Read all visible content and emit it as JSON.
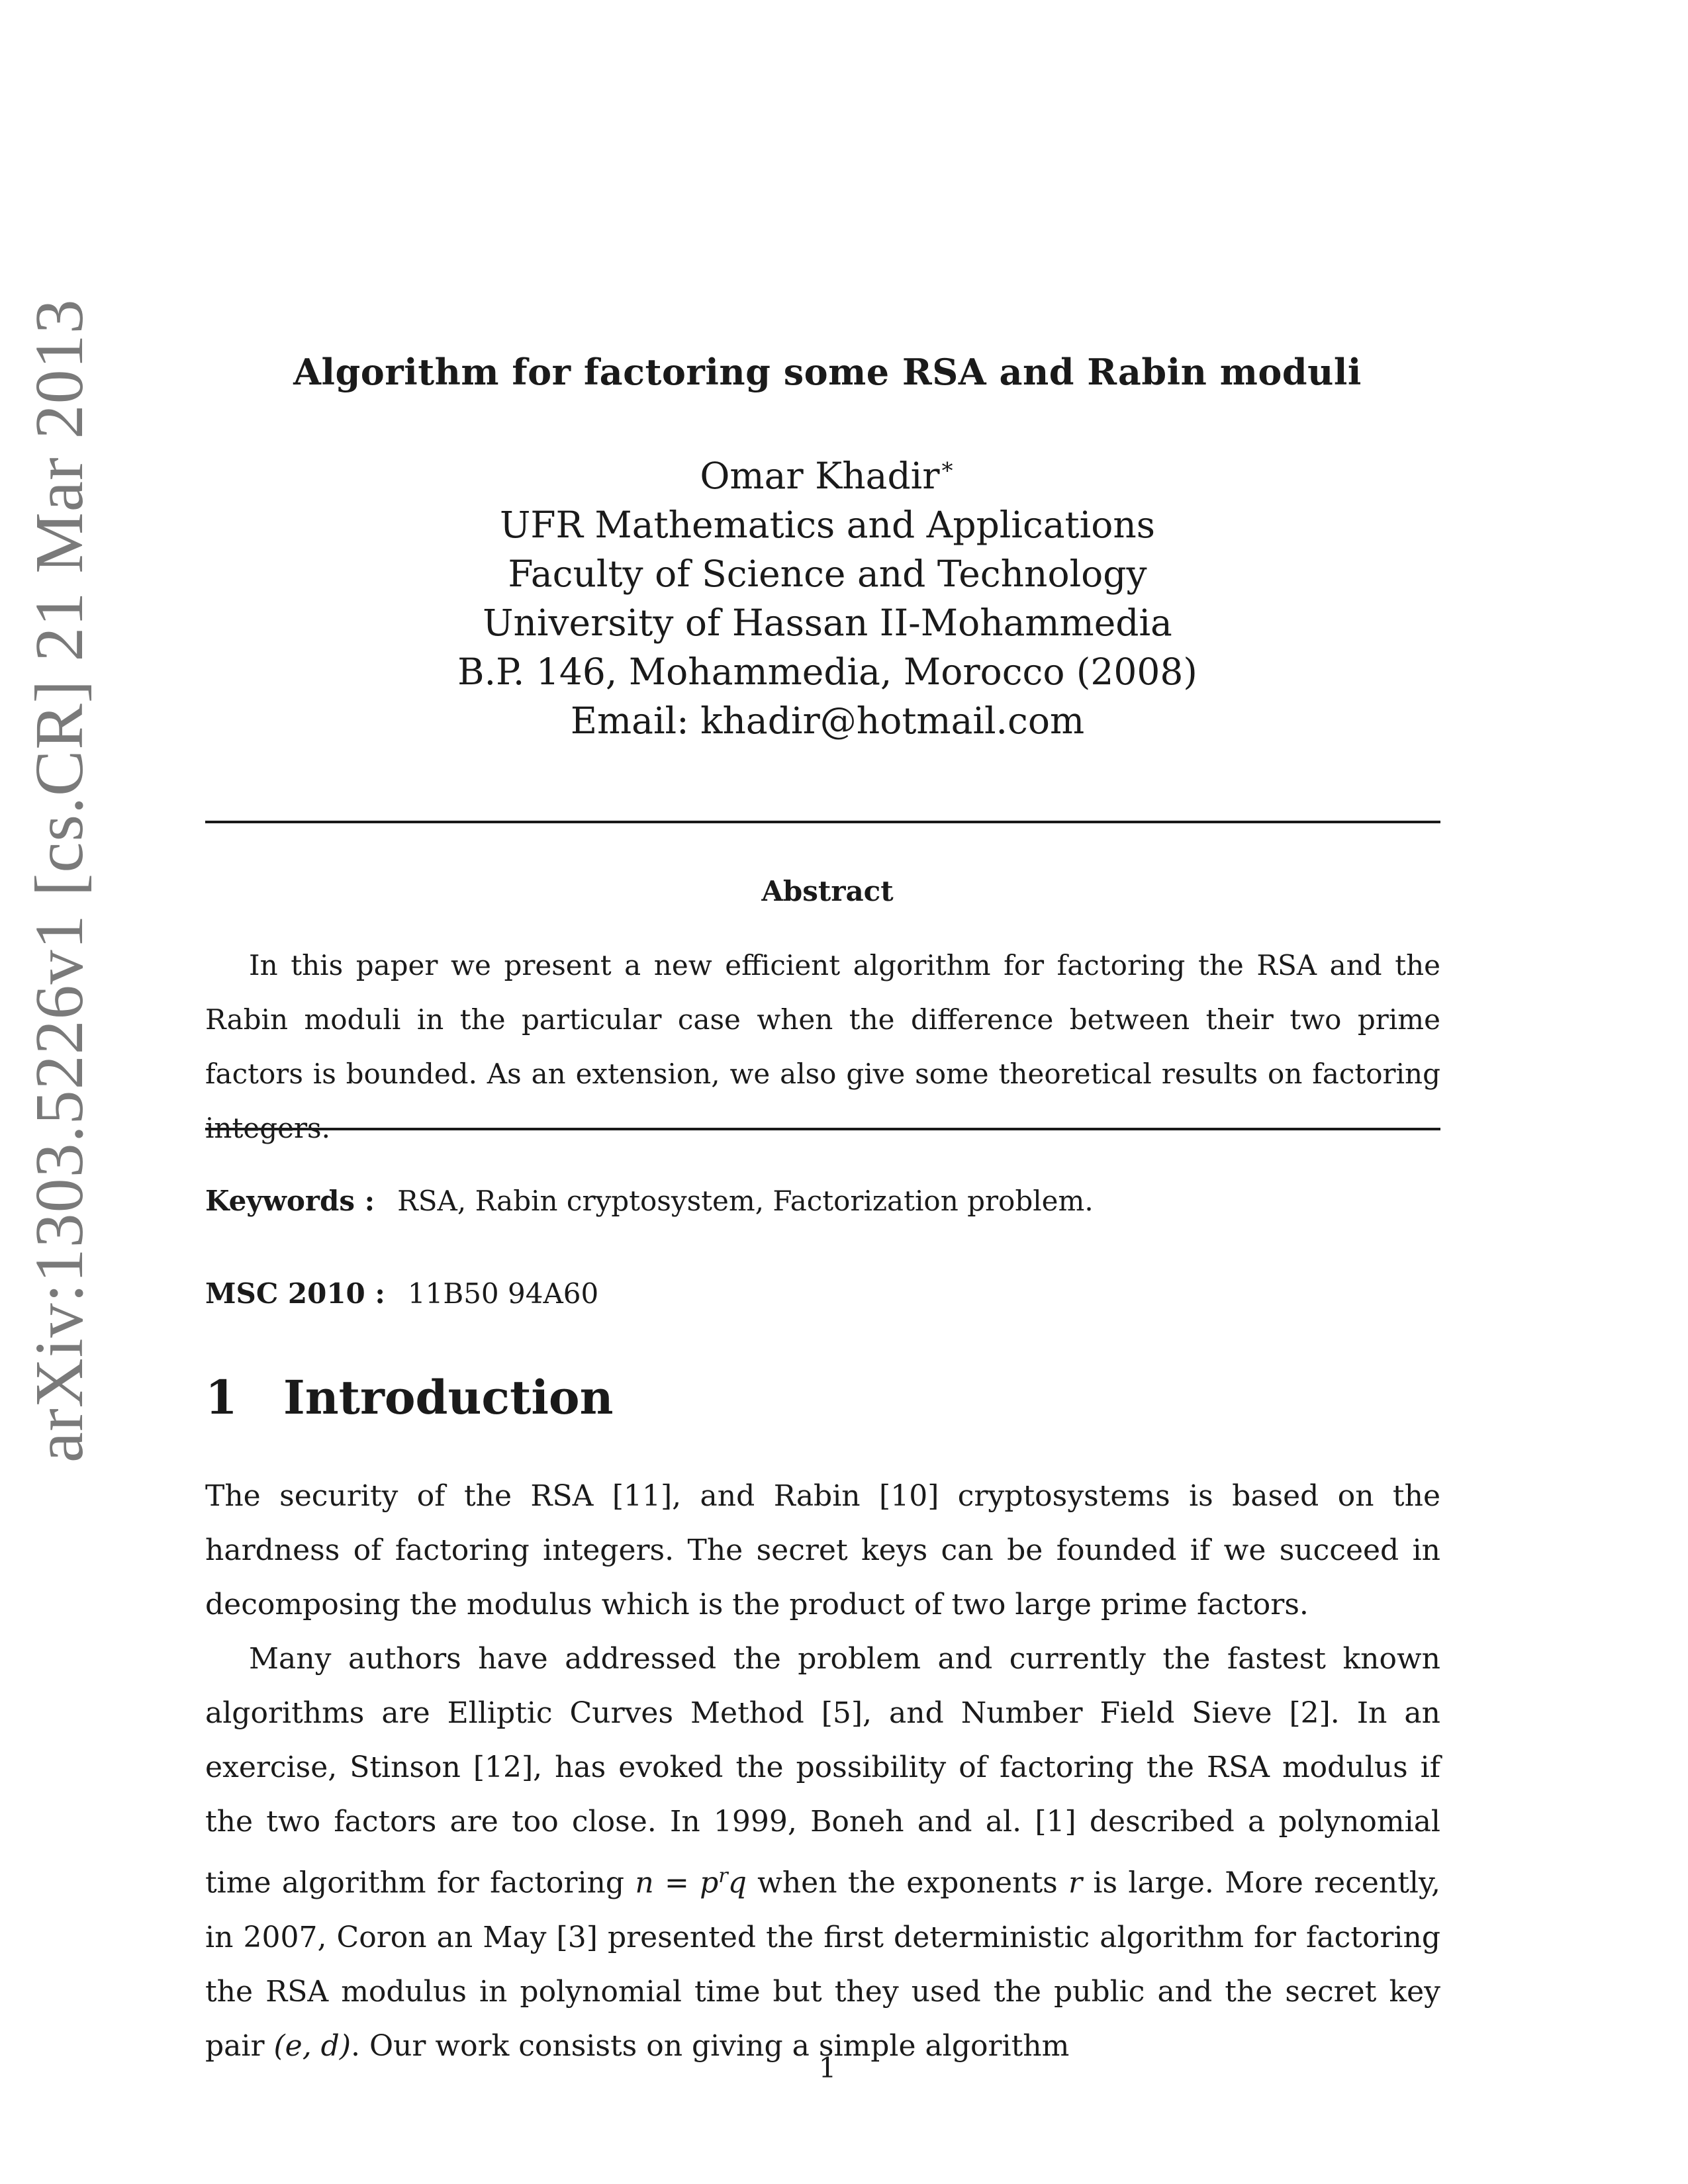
{
  "arxiv_stamp": "arXiv:1303.5226v1  [cs.CR]  21 Mar 2013",
  "title": "Algorithm for factoring some RSA and Rabin moduli",
  "author": {
    "name": "Omar Khadir",
    "footnote_mark": "∗",
    "lines": [
      "UFR Mathematics and Applications",
      "Faculty of Science and Technology",
      "University of Hassan II-Mohammedia",
      "B.P. 146, Mohammedia, Morocco (2008)",
      "Email: khadir@hotmail.com"
    ]
  },
  "abstract": {
    "heading": "Abstract",
    "text": "In this paper we present a new efficient algorithm for factoring the RSA and the Rabin moduli in the particular case when the difference between their two prime factors is bounded. As an extension, we also give some theoretical results on factoring integers."
  },
  "keywords": {
    "label": "Keywords :",
    "value": "RSA, Rabin cryptosystem, Factorization problem."
  },
  "msc": {
    "label": "MSC 2010 :",
    "value": "11B50 94A60"
  },
  "section": {
    "number": "1",
    "title": "Introduction"
  },
  "body": {
    "p1": "The security of the RSA [11], and Rabin [10] cryptosystems is based on the hardness of factoring integers. The secret keys can be founded if we succeed in decomposing the modulus which is the product of two large prime factors.",
    "p2_a": "Many authors have addressed the problem and currently the fastest known algorithms are Elliptic Curves Method [5], and Number Field Sieve [2]. In an exercise, Stinson [12], has evoked the possibility of factoring the RSA modulus if the two factors are too close. In 1999, Boneh and al. [1] described a polynomial time algorithm for factoring ",
    "math_n": "n",
    "math_eq": " = ",
    "math_p": "p",
    "math_r_sup": "r",
    "math_q": "q",
    "p2_b": " when the exponents ",
    "math_r": "r",
    "p2_c": " is large. More recently, in 2007, Coron an May [3] presented the first deterministic algorithm for factoring the RSA modulus in polynomial time but they used the public and the secret key pair ",
    "math_ed": "(e, d)",
    "p2_d": ". Our work consists on giving a simple algorithm"
  },
  "page_number": "1"
}
